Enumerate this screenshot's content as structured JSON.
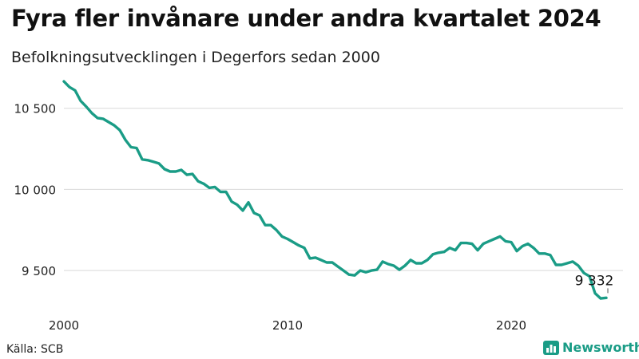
{
  "header": {
    "title": "Fyra fler invånare under andra kvartalet 2024",
    "subtitle": "Befolkningsutvecklingen i Degerfors sedan 2000"
  },
  "footer": {
    "source": "Källa: SCB",
    "brand": "Newsworthy"
  },
  "colors": {
    "line": "#1a9c86",
    "grid": "#d9d9d9",
    "brand": "#1a9c86"
  },
  "chart_data": {
    "type": "line",
    "title": "Fyra fler invånare under andra kvartalet 2024",
    "subtitle": "Befolkningsutvecklingen i Degerfors sedan 2000",
    "xlabel": "",
    "ylabel": "",
    "xlim": [
      2000,
      2025
    ],
    "ylim": [
      9250,
      10700
    ],
    "x_ticks": [
      {
        "value": 2000,
        "label": "2000"
      },
      {
        "value": 2010,
        "label": "2010"
      },
      {
        "value": 2020,
        "label": "2020"
      }
    ],
    "y_ticks": [
      {
        "value": 9500,
        "label": "9 500"
      },
      {
        "value": 10000,
        "label": "10 000"
      },
      {
        "value": 10500,
        "label": "10 500"
      }
    ],
    "grid": "horizontal",
    "annotation": {
      "x": 2024.25,
      "y": 9332,
      "label": "9 332"
    },
    "series": [
      {
        "x": [
          2000.0,
          2000.25,
          2000.5,
          2000.75,
          2001.0,
          2001.25,
          2001.5,
          2001.75,
          2002.0,
          2002.25,
          2002.5,
          2002.75,
          2003.0,
          2003.25,
          2003.5,
          2003.75,
          2004.0,
          2004.25,
          2004.5,
          2004.75,
          2005.0,
          2005.25,
          2005.5,
          2005.75,
          2006.0,
          2006.25,
          2006.5,
          2006.75,
          2007.0,
          2007.25,
          2007.5,
          2007.75,
          2008.0,
          2008.25,
          2008.5,
          2008.75,
          2009.0,
          2009.25,
          2009.5,
          2009.75,
          2010.0,
          2010.25,
          2010.5,
          2010.75,
          2011.0,
          2011.25,
          2011.5,
          2011.75,
          2012.0,
          2012.25,
          2012.5,
          2012.75,
          2013.0,
          2013.25,
          2013.5,
          2013.75,
          2014.0,
          2014.25,
          2014.5,
          2014.75,
          2015.0,
          2015.25,
          2015.5,
          2015.75,
          2016.0,
          2016.25,
          2016.5,
          2016.75,
          2017.0,
          2017.25,
          2017.5,
          2017.75,
          2018.0,
          2018.25,
          2018.5,
          2018.75,
          2019.0,
          2019.25,
          2019.5,
          2019.75,
          2020.0,
          2020.25,
          2020.5,
          2020.75,
          2021.0,
          2021.25,
          2021.5,
          2021.75,
          2022.0,
          2022.25,
          2022.5,
          2022.75,
          2023.0,
          2023.25,
          2023.5,
          2023.75,
          2024.0,
          2024.25
        ],
        "values": [
          10665,
          10630,
          10610,
          10545,
          10510,
          10470,
          10440,
          10435,
          10415,
          10395,
          10365,
          10305,
          10260,
          10255,
          10185,
          10180,
          10170,
          10160,
          10125,
          10110,
          10110,
          10120,
          10090,
          10095,
          10050,
          10035,
          10010,
          10015,
          9985,
          9985,
          9925,
          9905,
          9870,
          9920,
          9855,
          9840,
          9780,
          9780,
          9750,
          9710,
          9695,
          9675,
          9655,
          9640,
          9575,
          9580,
          9565,
          9550,
          9550,
          9525,
          9500,
          9475,
          9470,
          9500,
          9490,
          9500,
          9505,
          9555,
          9540,
          9530,
          9505,
          9530,
          9565,
          9545,
          9545,
          9565,
          9600,
          9610,
          9615,
          9640,
          9625,
          9670,
          9670,
          9665,
          9625,
          9665,
          9680,
          9695,
          9710,
          9680,
          9675,
          9620,
          9650,
          9665,
          9640,
          9605,
          9605,
          9595,
          9535,
          9535,
          9545,
          9555,
          9530,
          9485,
          9465,
          9360,
          9328,
          9332
        ]
      }
    ]
  }
}
